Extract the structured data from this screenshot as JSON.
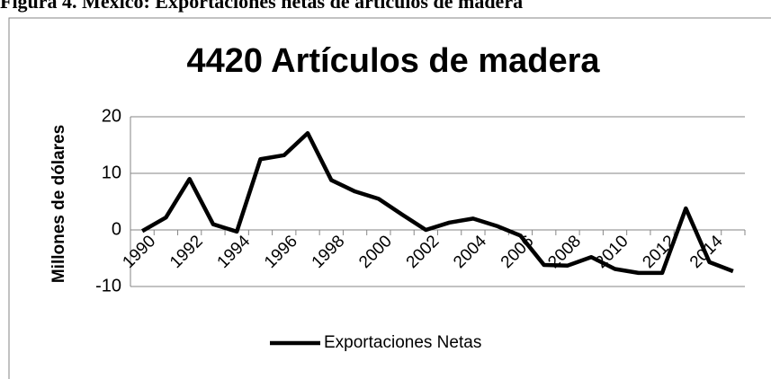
{
  "header": {
    "caption": "Figura 4. México: Exportaciones netas de artículos de madera"
  },
  "chart_data": {
    "type": "line",
    "title": "4420 Artículos de madera",
    "y_label": "Millones de dólares",
    "categories": [
      "1990",
      null,
      "1992",
      null,
      "1994",
      null,
      "1996",
      null,
      "1998",
      null,
      "2000",
      null,
      "2002",
      null,
      "2004",
      null,
      "2006",
      null,
      "2008",
      null,
      "2010",
      null,
      "2012",
      null,
      "2014",
      null
    ],
    "series": [
      {
        "name": "Exportaciones Netas",
        "color": "#000000",
        "values": [
          -0.2,
          2.2,
          9,
          1,
          -0.3,
          12.5,
          13.2,
          17.1,
          8.8,
          6.8,
          5.5,
          2.7,
          0,
          1.3,
          2,
          0.7,
          -1,
          -6.2,
          -6.3,
          -4.8,
          -6.9,
          -7.6,
          -7.6,
          3.8,
          -5.7,
          -7.3
        ]
      }
    ],
    "ylim": [
      -10,
      20
    ],
    "yticks": [
      -10,
      0,
      10,
      20
    ],
    "grid": true,
    "legend": "bottom"
  }
}
